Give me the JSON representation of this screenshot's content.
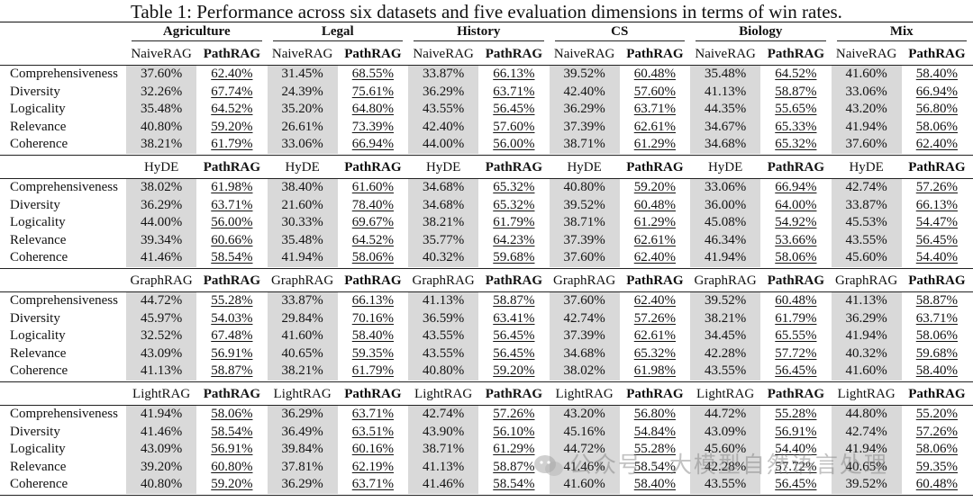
{
  "caption": "Table 1: Performance across six datasets and five evaluation dimensions in terms of win rates.",
  "datasets": [
    "Agriculture",
    "Legal",
    "History",
    "CS",
    "Biology",
    "Mix"
  ],
  "metrics": [
    "Comprehensiveness",
    "Diversity",
    "Logicality",
    "Relevance",
    "Coherence"
  ],
  "blocks": [
    {
      "baseline": "NaiveRAG",
      "ours": "PathRAG",
      "rows": [
        [
          "37.60%",
          "62.40%",
          "31.45%",
          "68.55%",
          "33.87%",
          "66.13%",
          "39.52%",
          "60.48%",
          "35.48%",
          "64.52%",
          "41.60%",
          "58.40%"
        ],
        [
          "32.26%",
          "67.74%",
          "24.39%",
          "75.61%",
          "36.29%",
          "63.71%",
          "42.40%",
          "57.60%",
          "41.13%",
          "58.87%",
          "33.06%",
          "66.94%"
        ],
        [
          "35.48%",
          "64.52%",
          "35.20%",
          "64.80%",
          "43.55%",
          "56.45%",
          "36.29%",
          "63.71%",
          "44.35%",
          "55.65%",
          "43.20%",
          "56.80%"
        ],
        [
          "40.80%",
          "59.20%",
          "26.61%",
          "73.39%",
          "42.40%",
          "57.60%",
          "37.39%",
          "62.61%",
          "34.67%",
          "65.33%",
          "41.94%",
          "58.06%"
        ],
        [
          "38.21%",
          "61.79%",
          "33.06%",
          "66.94%",
          "44.00%",
          "56.00%",
          "38.71%",
          "61.29%",
          "34.68%",
          "65.32%",
          "37.60%",
          "62.40%"
        ]
      ]
    },
    {
      "baseline": "HyDE",
      "ours": "PathRAG",
      "rows": [
        [
          "38.02%",
          "61.98%",
          "38.40%",
          "61.60%",
          "34.68%",
          "65.32%",
          "40.80%",
          "59.20%",
          "33.06%",
          "66.94%",
          "42.74%",
          "57.26%"
        ],
        [
          "36.29%",
          "63.71%",
          "21.60%",
          "78.40%",
          "34.68%",
          "65.32%",
          "39.52%",
          "60.48%",
          "36.00%",
          "64.00%",
          "33.87%",
          "66.13%"
        ],
        [
          "44.00%",
          "56.00%",
          "30.33%",
          "69.67%",
          "38.21%",
          "61.79%",
          "38.71%",
          "61.29%",
          "45.08%",
          "54.92%",
          "45.53%",
          "54.47%"
        ],
        [
          "39.34%",
          "60.66%",
          "35.48%",
          "64.52%",
          "35.77%",
          "64.23%",
          "37.39%",
          "62.61%",
          "46.34%",
          "53.66%",
          "43.55%",
          "56.45%"
        ],
        [
          "41.46%",
          "58.54%",
          "41.94%",
          "58.06%",
          "40.32%",
          "59.68%",
          "37.60%",
          "62.40%",
          "41.94%",
          "58.06%",
          "45.60%",
          "54.40%"
        ]
      ]
    },
    {
      "baseline": "GraphRAG",
      "ours": "PathRAG",
      "rows": [
        [
          "44.72%",
          "55.28%",
          "33.87%",
          "66.13%",
          "41.13%",
          "58.87%",
          "37.60%",
          "62.40%",
          "39.52%",
          "60.48%",
          "41.13%",
          "58.87%"
        ],
        [
          "45.97%",
          "54.03%",
          "29.84%",
          "70.16%",
          "36.59%",
          "63.41%",
          "42.74%",
          "57.26%",
          "38.21%",
          "61.79%",
          "36.29%",
          "63.71%"
        ],
        [
          "32.52%",
          "67.48%",
          "41.60%",
          "58.40%",
          "43.55%",
          "56.45%",
          "37.39%",
          "62.61%",
          "34.45%",
          "65.55%",
          "41.94%",
          "58.06%"
        ],
        [
          "43.09%",
          "56.91%",
          "40.65%",
          "59.35%",
          "43.55%",
          "56.45%",
          "34.68%",
          "65.32%",
          "42.28%",
          "57.72%",
          "40.32%",
          "59.68%"
        ],
        [
          "41.13%",
          "58.87%",
          "38.21%",
          "61.79%",
          "40.80%",
          "59.20%",
          "38.02%",
          "61.98%",
          "43.55%",
          "56.45%",
          "41.60%",
          "58.40%"
        ]
      ]
    },
    {
      "baseline": "LightRAG",
      "ours": "PathRAG",
      "rows": [
        [
          "41.94%",
          "58.06%",
          "36.29%",
          "63.71%",
          "42.74%",
          "57.26%",
          "43.20%",
          "56.80%",
          "44.72%",
          "55.28%",
          "44.80%",
          "55.20%"
        ],
        [
          "41.46%",
          "58.54%",
          "36.49%",
          "63.51%",
          "43.90%",
          "56.10%",
          "45.16%",
          "54.84%",
          "43.09%",
          "56.91%",
          "42.74%",
          "57.26%"
        ],
        [
          "43.09%",
          "56.91%",
          "39.84%",
          "60.16%",
          "38.71%",
          "61.29%",
          "44.72%",
          "55.28%",
          "45.60%",
          "54.40%",
          "41.94%",
          "58.06%"
        ],
        [
          "39.20%",
          "60.80%",
          "37.81%",
          "62.19%",
          "41.13%",
          "58.87%",
          "41.46%",
          "58.54%",
          "42.28%",
          "57.72%",
          "40.65%",
          "59.35%"
        ],
        [
          "40.80%",
          "59.20%",
          "36.29%",
          "63.71%",
          "41.46%",
          "58.54%",
          "41.60%",
          "58.40%",
          "43.55%",
          "56.45%",
          "39.52%",
          "60.48%"
        ]
      ]
    }
  ],
  "watermark": "公众号 · 大模型自然语言处理"
}
